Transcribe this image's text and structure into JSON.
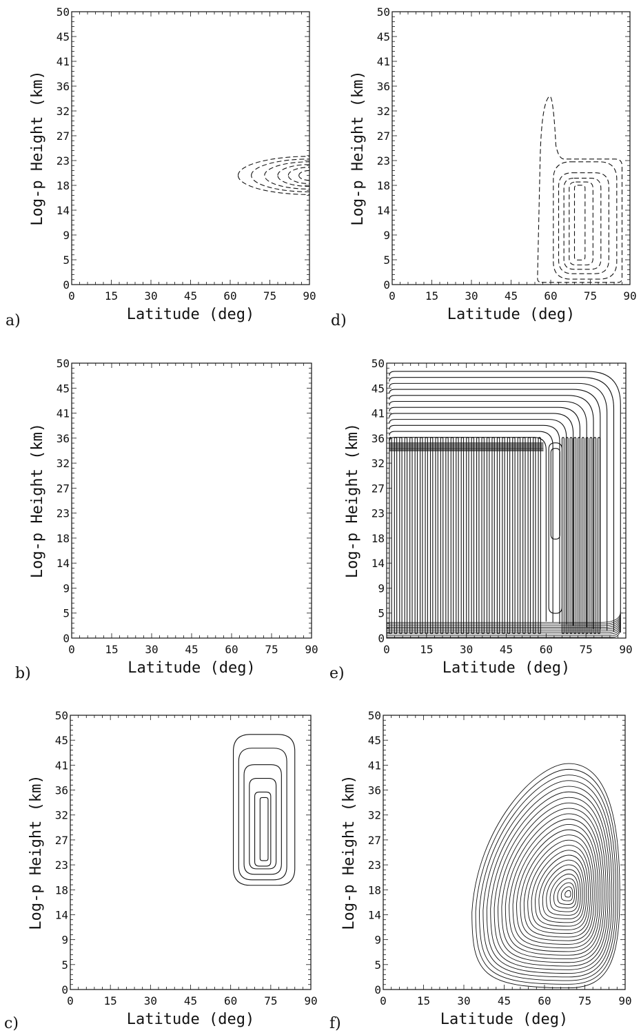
{
  "chart_data": [
    {
      "panel": "a)",
      "type": "contour",
      "xlabel": "Latitude (deg)",
      "ylabel": "Log-p Height (km)",
      "xticks": [
        "0",
        "15",
        "30",
        "45",
        "60",
        "75",
        "90"
      ],
      "yticks": [
        "0",
        "5",
        "9",
        "14",
        "18",
        "23",
        "27",
        "32",
        "36",
        "41",
        "45",
        "50"
      ],
      "xlim": [
        0,
        90
      ],
      "ylim": [
        0,
        50
      ],
      "line_style": "dashed",
      "contours": [
        {
          "cx": 90,
          "cy": 20,
          "rx": 27,
          "ry": 3.5
        },
        {
          "cx": 90,
          "cy": 20,
          "rx": 22,
          "ry": 3.0
        },
        {
          "cx": 90,
          "cy": 20,
          "rx": 17,
          "ry": 2.5
        },
        {
          "cx": 90,
          "cy": 20,
          "rx": 12,
          "ry": 2.0
        },
        {
          "cx": 90,
          "cy": 20,
          "rx": 8,
          "ry": 1.5
        },
        {
          "cx": 90,
          "cy": 20,
          "rx": 4,
          "ry": 0.9
        }
      ]
    },
    {
      "panel": "b)",
      "type": "contour",
      "xlabel": "Latitude (deg)",
      "ylabel": "Log-p Height (km)",
      "xticks": [
        "0",
        "15",
        "30",
        "45",
        "60",
        "75",
        "90"
      ],
      "yticks": [
        "0",
        "5",
        "9",
        "14",
        "18",
        "23",
        "27",
        "32",
        "36",
        "41",
        "45",
        "50"
      ],
      "xlim": [
        0,
        90
      ],
      "ylim": [
        0,
        50
      ],
      "line_style": "solid",
      "contours": []
    },
    {
      "panel": "c)",
      "type": "contour",
      "xlabel": "Latitude (deg)",
      "ylabel": "Log-p Height (km)",
      "xticks": [
        "0",
        "15",
        "30",
        "45",
        "60",
        "75",
        "90"
      ],
      "yticks": [
        "0",
        "5",
        "9",
        "14",
        "18",
        "23",
        "27",
        "32",
        "36",
        "41",
        "45",
        "50"
      ],
      "xlim": [
        0,
        90
      ],
      "ylim": [
        0,
        50
      ],
      "line_style": "solid",
      "contours": [
        {
          "x0": 61,
          "x1": 84,
          "y0": 19,
          "y1": 46.5
        },
        {
          "x0": 63,
          "x1": 81,
          "y0": 20,
          "y1": 44
        },
        {
          "x0": 65,
          "x1": 79,
          "y0": 21,
          "y1": 41
        },
        {
          "x0": 67,
          "x1": 77,
          "y0": 22,
          "y1": 38.5
        },
        {
          "x0": 69,
          "x1": 75,
          "y0": 22.5,
          "y1": 36
        },
        {
          "x0": 71,
          "x1": 74,
          "y0": 23.5,
          "y1": 35
        }
      ]
    },
    {
      "panel": "d)",
      "type": "contour",
      "xlabel": "Latitude (deg)",
      "ylabel": "Log-p Height (km)",
      "xticks": [
        "0",
        "15",
        "30",
        "45",
        "60",
        "75",
        "90"
      ],
      "yticks": [
        "0",
        "5",
        "9",
        "14",
        "18",
        "23",
        "27",
        "32",
        "36",
        "41",
        "45",
        "50"
      ],
      "xlim": [
        0,
        90
      ],
      "ylim": [
        0,
        50
      ],
      "line_style": "dashed",
      "contours": [
        {
          "x0": 55,
          "x1": 87,
          "y0": 0.4,
          "y1": 23,
          "plume": {
            "x0": 56,
            "x1": 63,
            "top": 34.5
          }
        },
        {
          "x0": 61,
          "x1": 85,
          "y0": 1.0,
          "y1": 22.5
        },
        {
          "x0": 63,
          "x1": 82,
          "y0": 2.0,
          "y1": 20.5
        },
        {
          "x0": 65,
          "x1": 79,
          "y0": 2.8,
          "y1": 19.5
        },
        {
          "x0": 67,
          "x1": 76,
          "y0": 3.6,
          "y1": 18.8
        },
        {
          "x0": 69,
          "x1": 73,
          "y0": 4.5,
          "y1": 18.2
        }
      ]
    },
    {
      "panel": "e)",
      "type": "contour",
      "xlabel": "Latitude (deg)",
      "ylabel": "Log-p Height (km)",
      "xticks": [
        "0",
        "15",
        "30",
        "45",
        "60",
        "75",
        "90"
      ],
      "yticks": [
        "0",
        "5",
        "9",
        "14",
        "18",
        "23",
        "27",
        "32",
        "36",
        "41",
        "45",
        "50"
      ],
      "xlim": [
        0,
        90
      ],
      "ylim": [
        0,
        50
      ],
      "line_style": "solid",
      "contours": [],
      "columns": {
        "xmin": 1,
        "xmax": 59,
        "count": 30,
        "y0": 0.8,
        "y1": 36.5
      },
      "right_columns": {
        "xmin": 66,
        "xmax": 81,
        "count": 10
      },
      "arches": {
        "count": 12,
        "xleft": 1,
        "xright": 88,
        "ybase": 36.5,
        "ytop": 48.5
      },
      "core": {
        "x0": 61,
        "x1": 66,
        "y0": 4.5,
        "y1": 35.5,
        "y_bulge": 18
      }
    },
    {
      "panel": "f)",
      "type": "contour",
      "xlabel": "Latitude (deg)",
      "ylabel": "Log-p Height (km)",
      "xticks": [
        "0",
        "15",
        "30",
        "45",
        "60",
        "75",
        "90"
      ],
      "yticks": [
        "0",
        "5",
        "9",
        "14",
        "18",
        "23",
        "27",
        "32",
        "36",
        "41",
        "45",
        "50"
      ],
      "xlim": [
        0,
        90
      ],
      "ylim": [
        0,
        50
      ],
      "line_style": "solid",
      "contours": [],
      "nested": {
        "count": 26,
        "center_x": 69,
        "center_y": 17.5,
        "outer": {
          "x0": 33,
          "x1": 88,
          "y0": 0.3,
          "y1": 41.2
        }
      }
    }
  ]
}
